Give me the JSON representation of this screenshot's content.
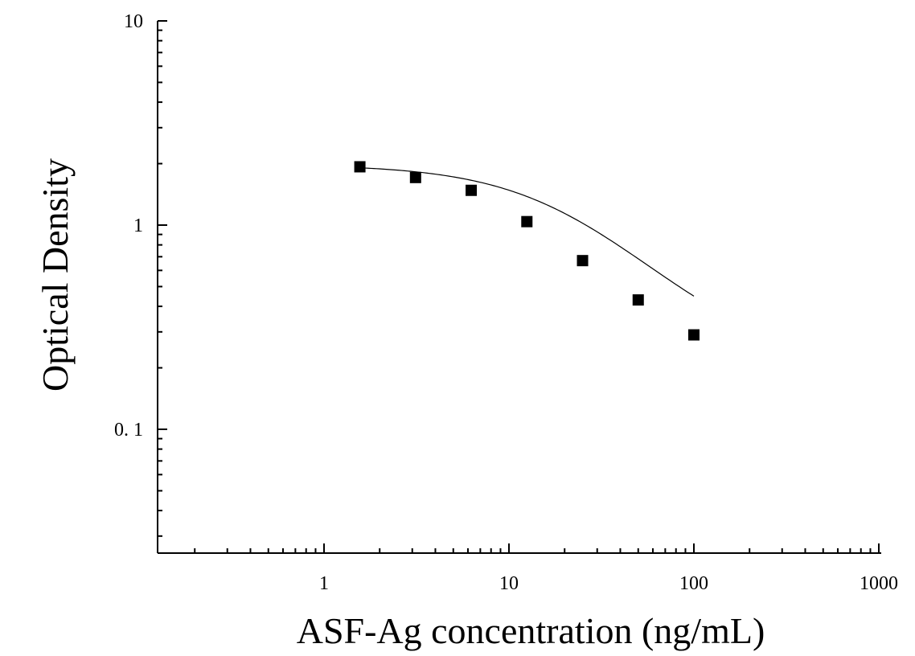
{
  "chart_data": {
    "type": "scatter",
    "title": "",
    "xlabel": "ASF-Ag concentration (ng/mL)",
    "ylabel": "Optical Density",
    "xscale": "log",
    "yscale": "log",
    "xlim": [
      0.12,
      1000
    ],
    "ylim": [
      0.025,
      10
    ],
    "grid": false,
    "legend": "none",
    "x_ticks": [
      {
        "value": 1,
        "label": "1"
      },
      {
        "value": 10,
        "label": "10"
      },
      {
        "value": 100,
        "label": "100"
      },
      {
        "value": 1000,
        "label": "1000"
      }
    ],
    "y_ticks": [
      {
        "value": 0.1,
        "label": "0. 1"
      },
      {
        "value": 1,
        "label": "1"
      },
      {
        "value": 10,
        "label": "10"
      }
    ],
    "series": [
      {
        "marker": "square",
        "color": "#000000",
        "x": [
          1.5625,
          3.125,
          6.25,
          12.5,
          25,
          50,
          100
        ],
        "y": [
          1.93,
          1.71,
          1.48,
          1.04,
          0.67,
          0.43,
          0.29
        ]
      }
    ],
    "fit_curve": {
      "type": "four-parameter-logistic",
      "color": "#000000",
      "params": {
        "top": 1.98,
        "bottom": 0.2,
        "ec50": 22,
        "hill": 1.2
      },
      "x_range": [
        1.5625,
        100
      ]
    }
  }
}
